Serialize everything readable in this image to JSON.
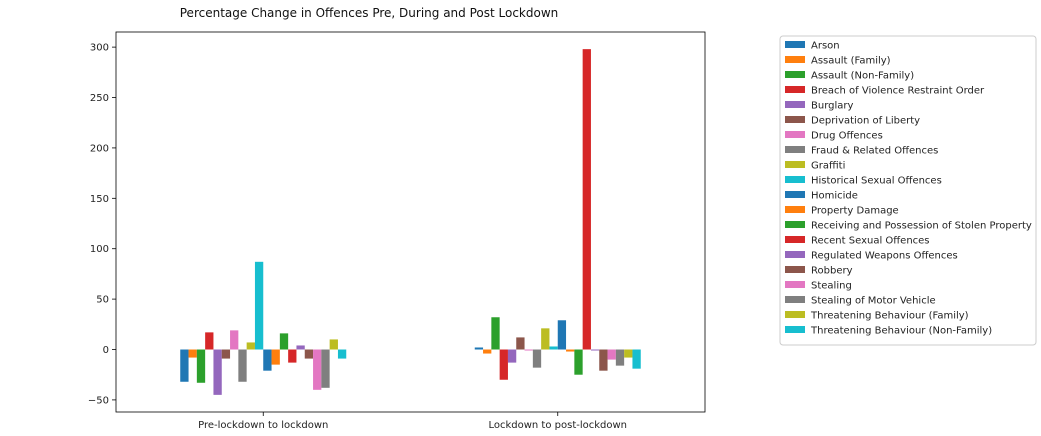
{
  "chart_data": {
    "type": "bar",
    "title": "Percentage Change in Offences Pre, During and Post Lockdown",
    "xlabel": "",
    "ylabel": "",
    "categories": [
      "Pre-lockdown to lockdown",
      "Lockdown to post-lockdown"
    ],
    "ylim": [
      -62,
      315
    ],
    "yticks": [
      -50,
      0,
      50,
      100,
      150,
      200,
      250,
      300
    ],
    "grid": false,
    "legend_position": "right",
    "series": [
      {
        "name": "Arson",
        "color": "#1f77b4",
        "values": [
          -32,
          2
        ]
      },
      {
        "name": "Assault (Family)",
        "color": "#ff7f0e",
        "values": [
          -8,
          -4
        ]
      },
      {
        "name": "Assault (Non-Family)",
        "color": "#2ca02c",
        "values": [
          -33,
          32
        ]
      },
      {
        "name": "Breach of Violence Restraint Order",
        "color": "#d62728",
        "values": [
          17,
          -30
        ]
      },
      {
        "name": "Burglary",
        "color": "#9467bd",
        "values": [
          -45,
          -13
        ]
      },
      {
        "name": "Deprivation of Liberty",
        "color": "#8c564b",
        "values": [
          -9,
          12
        ]
      },
      {
        "name": "Drug Offences",
        "color": "#e377c2",
        "values": [
          19,
          -1
        ]
      },
      {
        "name": "Fraud & Related Offences",
        "color": "#7f7f7f",
        "values": [
          -32,
          -18
        ]
      },
      {
        "name": "Graffiti",
        "color": "#bcbd22",
        "values": [
          7,
          21
        ]
      },
      {
        "name": "Historical Sexual Offences",
        "color": "#17becf",
        "values": [
          87,
          3
        ]
      },
      {
        "name": "Homicide",
        "color": "#1f77b4",
        "values": [
          -21,
          29
        ]
      },
      {
        "name": "Property Damage",
        "color": "#ff7f0e",
        "values": [
          -15,
          -2
        ]
      },
      {
        "name": "Receiving and Possession of Stolen Property",
        "color": "#2ca02c",
        "values": [
          16,
          -25
        ]
      },
      {
        "name": "Recent Sexual Offences",
        "color": "#d62728",
        "values": [
          -13,
          298
        ]
      },
      {
        "name": "Regulated Weapons Offences",
        "color": "#9467bd",
        "values": [
          4,
          -1
        ]
      },
      {
        "name": "Robbery",
        "color": "#8c564b",
        "values": [
          -9,
          -21
        ]
      },
      {
        "name": "Stealing",
        "color": "#e377c2",
        "values": [
          -40,
          -10
        ]
      },
      {
        "name": "Stealing of Motor Vehicle",
        "color": "#7f7f7f",
        "values": [
          -38,
          -16
        ]
      },
      {
        "name": "Threatening Behaviour (Family)",
        "color": "#bcbd22",
        "values": [
          10,
          -8
        ]
      },
      {
        "name": "Threatening Behaviour (Non-Family)",
        "color": "#17becf",
        "values": [
          -9,
          -19
        ]
      }
    ]
  }
}
